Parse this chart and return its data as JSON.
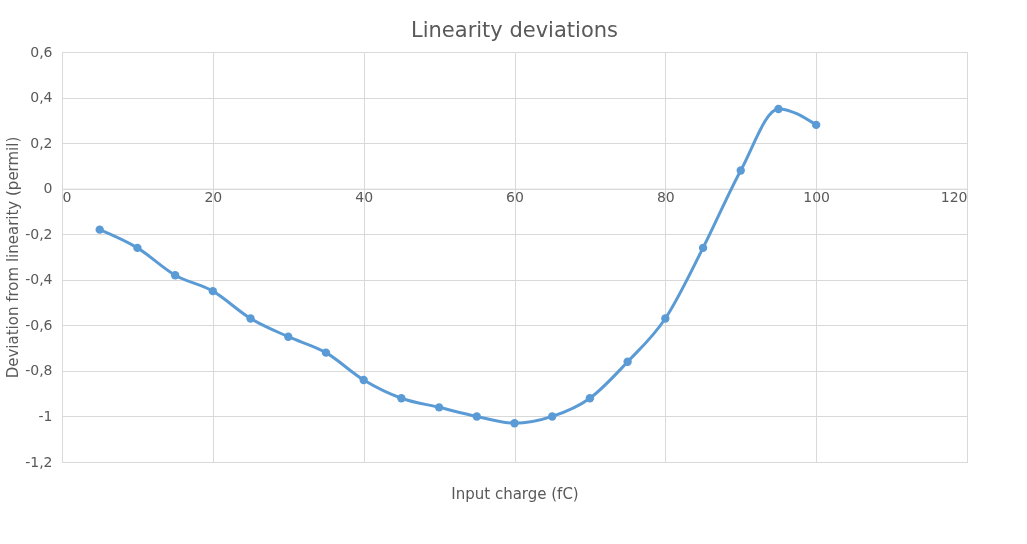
{
  "chart_data": {
    "type": "line",
    "title": "Linearity deviations",
    "xlabel": "Input charge (fC)",
    "ylabel": "Deviation from linearity (permil)",
    "x": [
      5,
      10,
      15,
      20,
      25,
      30,
      35,
      40,
      45,
      50,
      55,
      60,
      65,
      70,
      75,
      80,
      85,
      90,
      95,
      100
    ],
    "series": [
      {
        "color": "#5b9bd5",
        "values": [
          -0.18,
          -0.26,
          -0.38,
          -0.45,
          -0.57,
          -0.65,
          -0.72,
          -0.84,
          -0.92,
          -0.96,
          -1.0,
          -1.03,
          -1.0,
          -0.92,
          -0.76,
          -0.57,
          -0.26,
          0.08,
          0.35,
          0.28
        ]
      }
    ],
    "xlim": [
      0,
      120
    ],
    "xticks": [
      0,
      20,
      40,
      60,
      80,
      100,
      120
    ],
    "ylim": [
      -1.2,
      0.6
    ],
    "yticks": [
      {
        "value": -1.2,
        "label": "-1,2"
      },
      {
        "value": -1,
        "label": "-1"
      },
      {
        "value": -0.8,
        "label": "-0,8"
      },
      {
        "value": -0.6,
        "label": "-0,6"
      },
      {
        "value": -0.4,
        "label": "-0,4"
      },
      {
        "value": -0.2,
        "label": "-0,2"
      },
      {
        "value": 0,
        "label": "0"
      },
      {
        "value": 0.2,
        "label": "0,2"
      },
      {
        "value": 0.4,
        "label": "0,4"
      },
      {
        "value": 0.6,
        "label": "0,6"
      }
    ],
    "grid": true,
    "marker": "circle",
    "line_style": "solid"
  }
}
